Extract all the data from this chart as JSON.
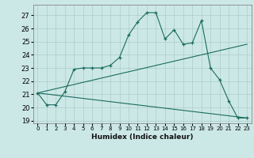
{
  "xlabel": "Humidex (Indice chaleur)",
  "bg_color": "#cce8e6",
  "grid_color": "#aaccca",
  "line_color": "#1a6b60",
  "xlim": [
    -0.5,
    23.5
  ],
  "ylim": [
    18.8,
    27.8
  ],
  "yticks": [
    19,
    20,
    21,
    22,
    23,
    24,
    25,
    26,
    27
  ],
  "xticks": [
    0,
    1,
    2,
    3,
    4,
    5,
    6,
    7,
    8,
    9,
    10,
    11,
    12,
    13,
    14,
    15,
    16,
    17,
    18,
    19,
    20,
    21,
    22,
    23
  ],
  "curve1_x": [
    0,
    1,
    2,
    3,
    4,
    5,
    6,
    7,
    8,
    9,
    10,
    11,
    12,
    13,
    14,
    15,
    16,
    17,
    18,
    19,
    20,
    21,
    22,
    23
  ],
  "curve1_y": [
    21.1,
    20.2,
    20.2,
    21.2,
    22.9,
    23.0,
    23.0,
    23.0,
    23.2,
    23.8,
    25.5,
    26.5,
    27.2,
    27.2,
    25.2,
    25.9,
    24.8,
    24.9,
    26.6,
    23.0,
    22.1,
    20.5,
    19.2,
    19.2
  ],
  "curve2_x": [
    0,
    23
  ],
  "curve2_y": [
    21.1,
    24.8
  ],
  "curve3_x": [
    0,
    23
  ],
  "curve3_y": [
    21.1,
    19.2
  ]
}
